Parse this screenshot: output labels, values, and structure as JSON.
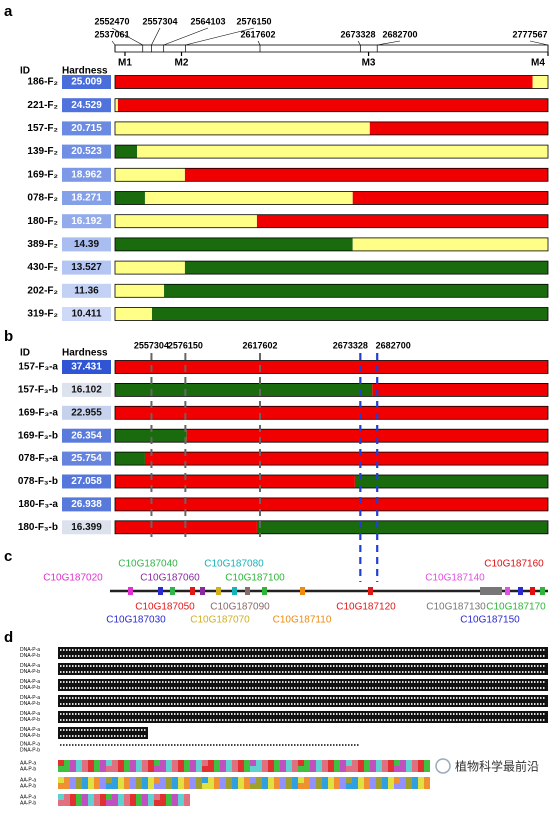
{
  "panel_a": {
    "label": "a",
    "id_header": "ID",
    "hardness_header": "Hardness",
    "xlim": [
      2537061,
      2777567
    ],
    "ticks": [
      2537061,
      2552470,
      2557304,
      2564103,
      2576150,
      2617602,
      2673328,
      2682700,
      2777567
    ],
    "markers": [
      {
        "label": "M1",
        "value": 2542600
      },
      {
        "label": "M2",
        "value": 2574000
      },
      {
        "label": "M3",
        "value": 2677900
      },
      {
        "label": "M4",
        "value": 2777567
      }
    ],
    "rows": [
      {
        "id": "186-F₂",
        "hardness": 25.009,
        "box_color": "#4a6ddc",
        "text_color": "#ffffff",
        "segments": [
          {
            "color": "#f00000",
            "end": 2769000
          },
          {
            "color": "#ffff88",
            "end": 2777567
          }
        ]
      },
      {
        "id": "221-F₂",
        "hardness": 24.529,
        "box_color": "#5072dd",
        "text_color": "#ffffff",
        "segments": [
          {
            "color": "#ffff88",
            "end": 2538700
          },
          {
            "color": "#f00000",
            "end": 2777567
          }
        ]
      },
      {
        "id": "157-F₂",
        "hardness": 20.715,
        "box_color": "#6b8be3",
        "text_color": "#ffffff",
        "segments": [
          {
            "color": "#ffff88",
            "end": 2678600
          },
          {
            "color": "#f00000",
            "end": 2777567
          }
        ]
      },
      {
        "id": "139-F₂",
        "hardness": 20.523,
        "box_color": "#6f8ee4",
        "text_color": "#ffffff",
        "segments": [
          {
            "color": "#1a6b0e",
            "end": 2549300
          },
          {
            "color": "#ffff88",
            "end": 2777567
          }
        ]
      },
      {
        "id": "169-F₂",
        "hardness": 18.962,
        "box_color": "#7c98e7",
        "text_color": "#ffffff",
        "segments": [
          {
            "color": "#ffff88",
            "end": 2575900
          },
          {
            "color": "#f00000",
            "end": 2777567
          }
        ]
      },
      {
        "id": "078-F₂",
        "hardness": 18.271,
        "box_color": "#84a0e9",
        "text_color": "#ffffff",
        "segments": [
          {
            "color": "#1a6b0e",
            "end": 2553700
          },
          {
            "color": "#ffff88",
            "end": 2669100
          },
          {
            "color": "#f00000",
            "end": 2777567
          }
        ]
      },
      {
        "id": "180-F₂",
        "hardness": 16.192,
        "box_color": "#93abeb",
        "text_color": "#ffffff",
        "segments": [
          {
            "color": "#ffff88",
            "end": 2615900
          },
          {
            "color": "#f00000",
            "end": 2777567
          }
        ]
      },
      {
        "id": "389-F₂",
        "hardness": 14.39,
        "box_color": "#a9bdf0",
        "text_color": "#111111",
        "segments": [
          {
            "color": "#1a6b0e",
            "end": 2669100
          },
          {
            "color": "#ffff88",
            "end": 2777567
          }
        ]
      },
      {
        "id": "430-F₂",
        "hardness": 13.527,
        "box_color": "#b3c5f2",
        "text_color": "#111111",
        "segments": [
          {
            "color": "#ffff88",
            "end": 2575900
          },
          {
            "color": "#1a6b0e",
            "end": 2777567
          }
        ]
      },
      {
        "id": "202-F₂",
        "hardness": 11.36,
        "box_color": "#c3d1f4",
        "text_color": "#111111",
        "segments": [
          {
            "color": "#ffff88",
            "end": 2564300
          },
          {
            "color": "#1a6b0e",
            "end": 2777567
          }
        ]
      },
      {
        "id": "319-F₂",
        "hardness": 10.411,
        "box_color": "#cdd9f6",
        "text_color": "#111111",
        "segments": [
          {
            "color": "#ffff88",
            "end": 2557600
          },
          {
            "color": "#1a6b0e",
            "end": 2777567
          }
        ]
      }
    ]
  },
  "panel_b": {
    "label": "b",
    "id_header": "ID",
    "hardness_header": "Hardness",
    "xlim": [
      2537061,
      2777567
    ],
    "ticks": [
      2557304,
      2576150,
      2617602,
      2673328,
      2682700
    ],
    "tick_colors": [
      "#666666",
      "#666666",
      "#666666",
      "#1f3fd6",
      "#1f3fd6"
    ],
    "rows": [
      {
        "id": "157-F₃-a",
        "hardness": 37.431,
        "box_color": "#2f55d4",
        "text_color": "#ffffff",
        "segments": [
          {
            "color": "#f00000",
            "end": 2777567
          }
        ]
      },
      {
        "id": "157-F₃-b",
        "hardness": 16.102,
        "box_color": "#dde3ee",
        "text_color": "#111111",
        "segments": [
          {
            "color": "#1a6b0e",
            "end": 2680000
          },
          {
            "color": "#f00000",
            "end": 2777567
          }
        ]
      },
      {
        "id": "169-F₃-a",
        "hardness": 22.955,
        "box_color": "#c6d1ee",
        "text_color": "#111111",
        "segments": [
          {
            "color": "#f00000",
            "end": 2777567
          }
        ]
      },
      {
        "id": "169-F₃-b",
        "hardness": 26.354,
        "box_color": "#5a7bdc",
        "text_color": "#ffffff",
        "segments": [
          {
            "color": "#1a6b0e",
            "end": 2576900
          },
          {
            "color": "#f00000",
            "end": 2777567
          }
        ]
      },
      {
        "id": "078-F₃-a",
        "hardness": 25.754,
        "box_color": "#6684de",
        "text_color": "#ffffff",
        "segments": [
          {
            "color": "#1a6b0e",
            "end": 2553700
          },
          {
            "color": "#f00000",
            "end": 2777567
          }
        ]
      },
      {
        "id": "078-F₃-b",
        "hardness": 27.058,
        "box_color": "#5577db",
        "text_color": "#ffffff",
        "segments": [
          {
            "color": "#f00000",
            "end": 2670300
          },
          {
            "color": "#1a6b0e",
            "end": 2777567
          }
        ]
      },
      {
        "id": "180-F₃-a",
        "hardness": 26.938,
        "box_color": "#5779db",
        "text_color": "#ffffff",
        "segments": [
          {
            "color": "#f00000",
            "end": 2777567
          }
        ]
      },
      {
        "id": "180-F₃-b",
        "hardness": 16.399,
        "box_color": "#dbe2ee",
        "text_color": "#111111",
        "segments": [
          {
            "color": "#f00000",
            "end": 2615900
          },
          {
            "color": "#1a6b0e",
            "end": 2777567
          }
        ]
      }
    ]
  },
  "panel_c": {
    "label": "c",
    "genes": [
      {
        "label": "C10G187040",
        "color": "#33b44a"
      },
      {
        "label": "C10G187080",
        "color": "#16b3b8"
      },
      {
        "label": "C10G187160",
        "color": "#e01010"
      },
      {
        "label": "C10G187020",
        "color": "#e030d0"
      },
      {
        "label": "C10G187060",
        "color": "#8a2aa0"
      },
      {
        "label": "C10G187100",
        "color": "#2fb53a"
      },
      {
        "label": "C10G187140",
        "color": "#e050e0"
      },
      {
        "label": "C10G187050",
        "color": "#e01818"
      },
      {
        "label": "C10G187090",
        "color": "#8a6a6a"
      },
      {
        "label": "C10G187120",
        "color": "#e01818"
      },
      {
        "label": "C10G187130",
        "color": "#777777"
      },
      {
        "label": "C10G187170",
        "color": "#2fb53a"
      },
      {
        "label": "C10G187030",
        "color": "#2a2ad0"
      },
      {
        "label": "C10G187070",
        "color": "#d0b020"
      },
      {
        "label": "C10G187110",
        "color": "#ee8a10"
      },
      {
        "label": "C10G187150",
        "color": "#2a2ad0"
      }
    ]
  },
  "panel_d": {
    "label": "d",
    "dna_labels": [
      "DNA-P-a",
      "DNA-P-b"
    ],
    "aa_labels": [
      "AA-P-a",
      "AA-P-b"
    ],
    "watermark": "植物科学最前沿"
  }
}
